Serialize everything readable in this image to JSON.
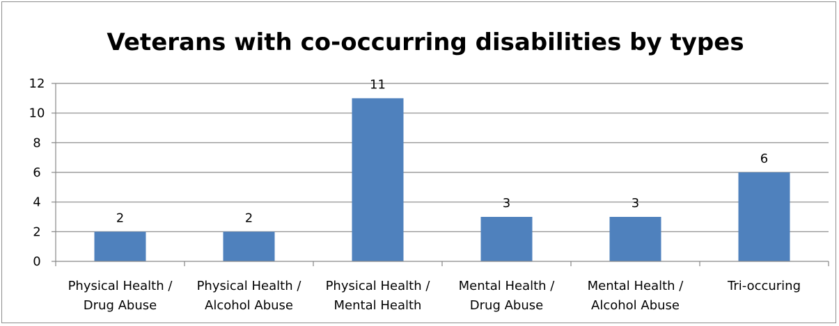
{
  "chart_data": {
    "type": "bar",
    "title": "Veterans with co-occurring disabilities by types",
    "categories": [
      [
        "Physical Health /",
        "Drug Abuse"
      ],
      [
        "Physical Health /",
        "Alcohol Abuse"
      ],
      [
        "Physical Health /",
        "Mental Health"
      ],
      [
        "Mental Health /",
        "Drug Abuse"
      ],
      [
        "Mental Health /",
        "Alcohol Abuse"
      ],
      [
        "Tri-occuring"
      ]
    ],
    "values": [
      2,
      2,
      11,
      3,
      3,
      6
    ],
    "ylim": [
      0,
      12
    ],
    "yticks": [
      0,
      2,
      4,
      6,
      8,
      10,
      12
    ],
    "grid": true,
    "data_labels": true,
    "legend": "none",
    "bar_color": "#4f81bd",
    "gridline_color": "#868686"
  }
}
